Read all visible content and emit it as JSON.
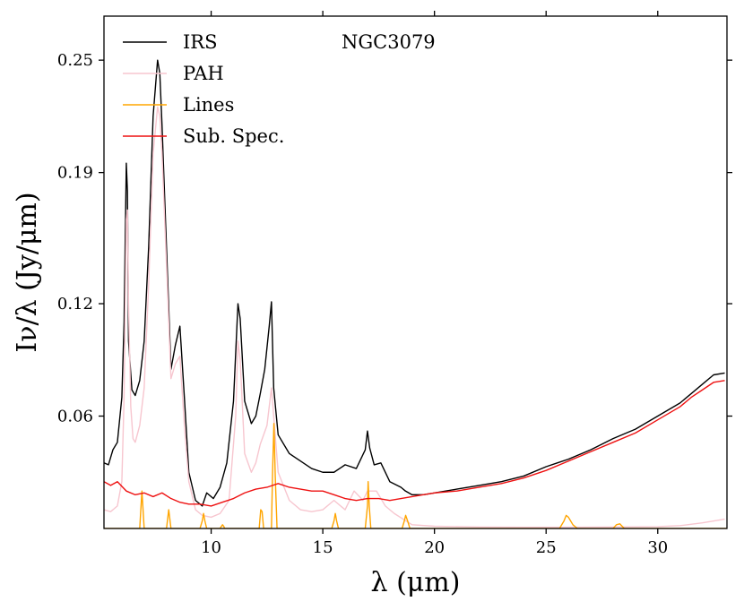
{
  "chart_data": {
    "type": "line",
    "title": "NGC3079",
    "xlabel": "λ (μm)",
    "ylabel": "Iν/λ (Jy/μm)",
    "xlim": [
      5.2,
      33.1
    ],
    "ylim": [
      0.0,
      0.2735
    ],
    "grid": false,
    "legend_position": "top-left",
    "x_ticks": [
      10,
      15,
      20,
      25,
      30
    ],
    "x_tick_labels": [
      "10",
      "15",
      "20",
      "25",
      "30"
    ],
    "y_ticks": [
      0.06,
      0.12,
      0.19,
      0.25
    ],
    "y_tick_labels": [
      "0.06",
      "0.12",
      "0.19",
      "0.25"
    ],
    "series": [
      {
        "name": "IRS",
        "color": "#000000",
        "x": [
          5.2,
          5.4,
          5.6,
          5.8,
          6.0,
          6.1,
          6.2,
          6.25,
          6.3,
          6.45,
          6.6,
          6.8,
          7.0,
          7.2,
          7.4,
          7.6,
          7.7,
          7.8,
          8.0,
          8.2,
          8.4,
          8.6,
          8.8,
          9.0,
          9.3,
          9.6,
          9.8,
          10.1,
          10.4,
          10.7,
          11.0,
          11.2,
          11.3,
          11.5,
          11.8,
          12.0,
          12.2,
          12.4,
          12.6,
          12.7,
          12.8,
          13.0,
          13.5,
          14.0,
          14.5,
          15.0,
          15.5,
          16.0,
          16.5,
          16.9,
          17.0,
          17.1,
          17.3,
          17.6,
          18.0,
          18.5,
          18.7,
          19.0,
          19.5,
          20.0,
          20.5,
          21.0,
          22.0,
          23.0,
          24.0,
          25.0,
          25.5,
          26.0,
          27.0,
          28.0,
          29.0,
          30.0,
          31.0,
          31.5,
          32.0,
          32.5,
          33.0
        ],
        "values": [
          0.035,
          0.034,
          0.042,
          0.046,
          0.07,
          0.11,
          0.195,
          0.18,
          0.1,
          0.074,
          0.071,
          0.079,
          0.1,
          0.15,
          0.22,
          0.25,
          0.243,
          0.215,
          0.15,
          0.085,
          0.098,
          0.108,
          0.07,
          0.03,
          0.015,
          0.012,
          0.019,
          0.016,
          0.022,
          0.035,
          0.068,
          0.12,
          0.112,
          0.068,
          0.056,
          0.06,
          0.072,
          0.085,
          0.108,
          0.121,
          0.075,
          0.05,
          0.04,
          0.036,
          0.032,
          0.03,
          0.03,
          0.034,
          0.032,
          0.042,
          0.052,
          0.043,
          0.034,
          0.035,
          0.025,
          0.022,
          0.02,
          0.018,
          0.018,
          0.019,
          0.02,
          0.021,
          0.023,
          0.025,
          0.028,
          0.033,
          0.035,
          0.037,
          0.042,
          0.048,
          0.053,
          0.06,
          0.067,
          0.072,
          0.077,
          0.082,
          0.083
        ]
      },
      {
        "name": "PAH",
        "color": "#f7c6cf",
        "x": [
          5.2,
          5.5,
          5.8,
          6.0,
          6.1,
          6.2,
          6.25,
          6.3,
          6.4,
          6.5,
          6.6,
          6.8,
          7.0,
          7.2,
          7.4,
          7.6,
          7.7,
          7.8,
          8.0,
          8.2,
          8.4,
          8.6,
          8.8,
          9.0,
          9.3,
          9.6,
          10.0,
          10.4,
          10.8,
          11.1,
          11.2,
          11.3,
          11.5,
          11.8,
          12.0,
          12.2,
          12.5,
          12.7,
          12.8,
          13.0,
          13.5,
          14.0,
          14.5,
          15.0,
          15.5,
          16.0,
          16.4,
          16.8,
          17.0,
          17.4,
          17.8,
          18.2,
          18.6,
          19.0,
          20.0,
          22.0,
          24.0,
          26.0,
          28.0,
          30.0,
          31.0,
          32.0,
          33.0
        ],
        "values": [
          0.01,
          0.009,
          0.012,
          0.025,
          0.07,
          0.165,
          0.17,
          0.12,
          0.065,
          0.048,
          0.046,
          0.055,
          0.075,
          0.13,
          0.2,
          0.225,
          0.22,
          0.2,
          0.14,
          0.08,
          0.088,
          0.092,
          0.055,
          0.025,
          0.01,
          0.007,
          0.006,
          0.008,
          0.015,
          0.06,
          0.1,
          0.09,
          0.04,
          0.03,
          0.035,
          0.045,
          0.055,
          0.075,
          0.06,
          0.03,
          0.015,
          0.01,
          0.009,
          0.01,
          0.015,
          0.01,
          0.02,
          0.015,
          0.02,
          0.02,
          0.012,
          0.008,
          0.005,
          0.002,
          0.0012,
          0.0008,
          0.0007,
          0.0007,
          0.0008,
          0.001,
          0.0015,
          0.003,
          0.005
        ]
      },
      {
        "name": "Lines",
        "color": "#ffa500",
        "x": [
          5.2,
          6.8,
          6.85,
          6.9,
          6.95,
          7.0,
          7.6,
          8.0,
          8.1,
          8.2,
          9.5,
          9.6,
          9.66,
          9.72,
          9.8,
          10.4,
          10.45,
          10.51,
          10.57,
          10.6,
          12.15,
          12.22,
          12.28,
          12.35,
          12.7,
          12.75,
          12.81,
          12.87,
          12.95,
          15.4,
          15.5,
          15.56,
          15.62,
          15.7,
          16.9,
          17.0,
          17.03,
          17.08,
          17.15,
          18.55,
          18.65,
          18.71,
          18.8,
          18.9,
          25.6,
          25.8,
          25.9,
          26.0,
          26.2,
          26.4,
          28.0,
          28.15,
          28.3,
          28.5,
          33.1
        ],
        "values": [
          0.0,
          0.0,
          0.01,
          0.02,
          0.01,
          0.0,
          0.0,
          0.0,
          0.01,
          0.0,
          0.0,
          0.004,
          0.008,
          0.004,
          0.0,
          0.0,
          0.001,
          0.002,
          0.001,
          0.0,
          0.0,
          0.01,
          0.009,
          0.0,
          0.0,
          0.03,
          0.056,
          0.028,
          0.0,
          0.0,
          0.004,
          0.008,
          0.004,
          0.0,
          0.0,
          0.012,
          0.025,
          0.012,
          0.0,
          0.0,
          0.004,
          0.007,
          0.004,
          0.0,
          0.0,
          0.004,
          0.007,
          0.006,
          0.002,
          0.0,
          0.0,
          0.002,
          0.0025,
          0.0,
          0.0
        ]
      },
      {
        "name": "Sub. Spec.",
        "color": "#ee1111",
        "x": [
          5.2,
          5.5,
          5.8,
          6.2,
          6.6,
          7.0,
          7.4,
          7.8,
          8.2,
          8.6,
          9.0,
          9.5,
          10.0,
          10.5,
          11.0,
          11.5,
          12.0,
          12.5,
          13.0,
          13.5,
          14.0,
          14.5,
          15.0,
          15.5,
          16.0,
          16.5,
          17.0,
          17.5,
          18.0,
          18.5,
          19.0,
          19.5,
          20.0,
          21.0,
          22.0,
          23.0,
          24.0,
          25.0,
          26.0,
          27.0,
          28.0,
          29.0,
          30.0,
          31.0,
          31.5,
          32.0,
          32.5,
          33.0
        ],
        "values": [
          0.025,
          0.023,
          0.025,
          0.02,
          0.018,
          0.019,
          0.017,
          0.019,
          0.016,
          0.014,
          0.013,
          0.013,
          0.012,
          0.014,
          0.016,
          0.019,
          0.021,
          0.022,
          0.024,
          0.022,
          0.021,
          0.02,
          0.02,
          0.018,
          0.016,
          0.015,
          0.016,
          0.016,
          0.015,
          0.016,
          0.017,
          0.018,
          0.019,
          0.02,
          0.022,
          0.024,
          0.027,
          0.031,
          0.036,
          0.041,
          0.046,
          0.051,
          0.058,
          0.065,
          0.07,
          0.074,
          0.078,
          0.079
        ]
      }
    ]
  }
}
